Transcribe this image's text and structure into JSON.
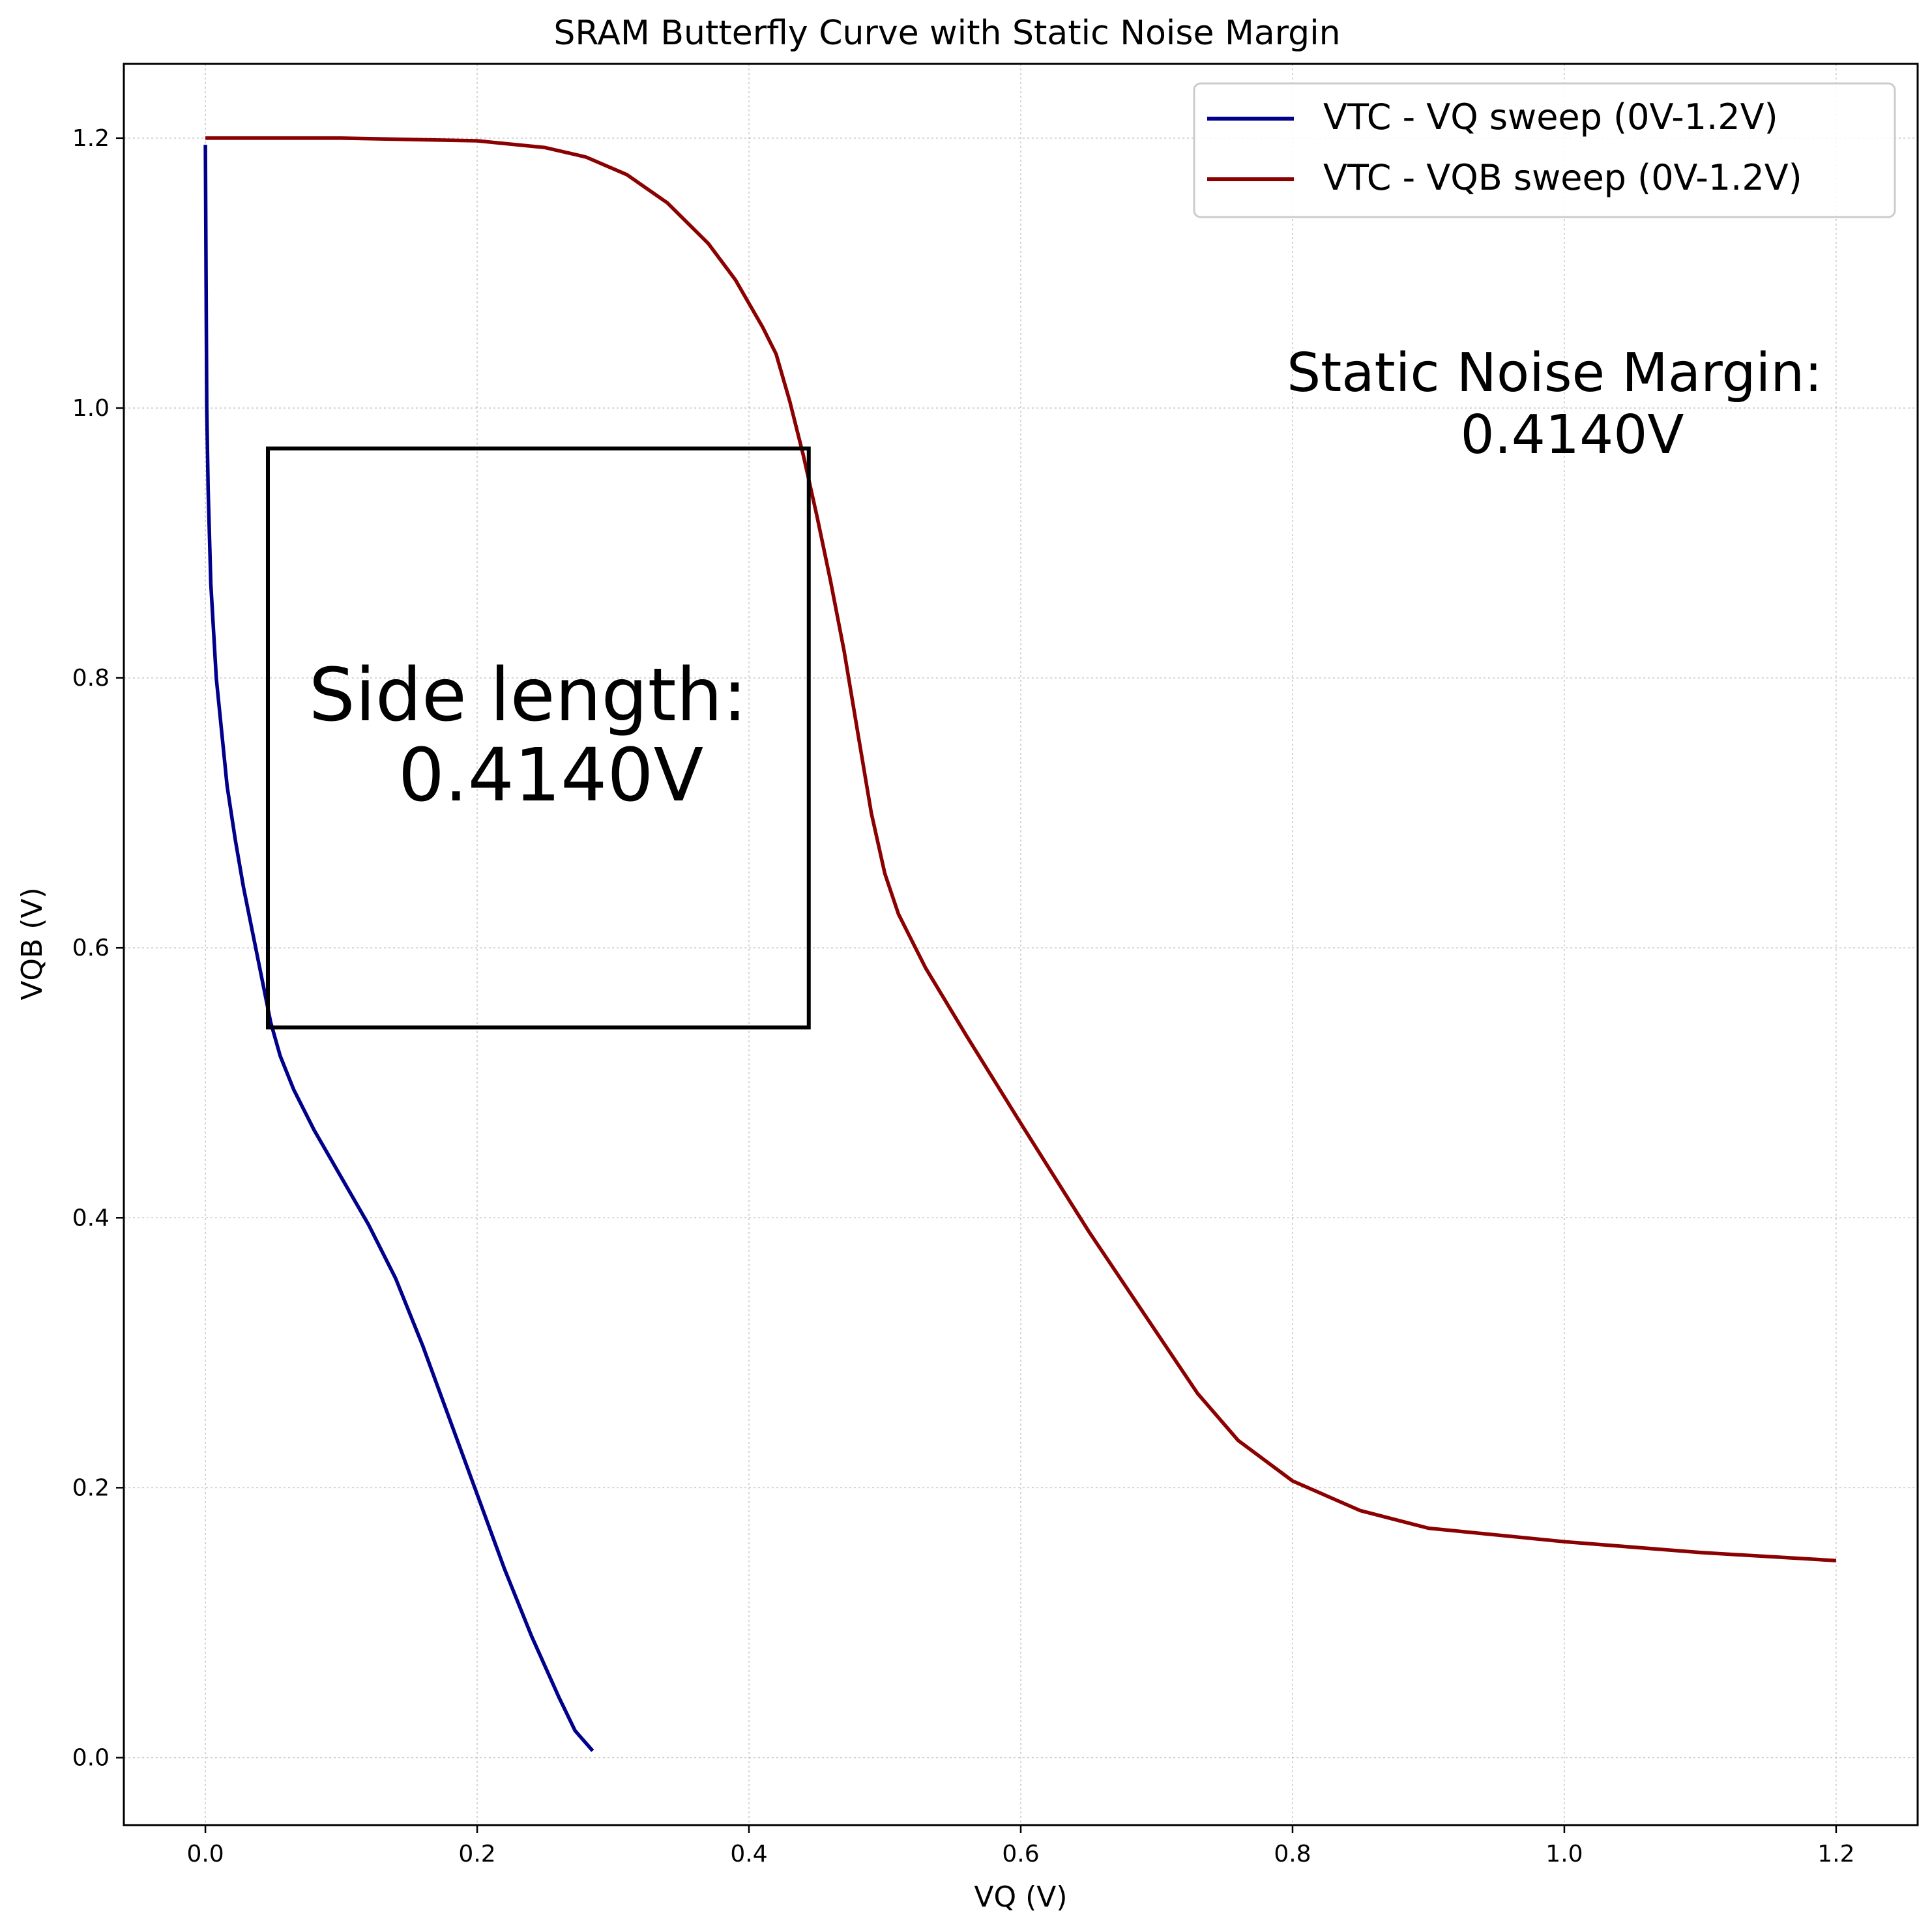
{
  "chart_data": {
    "type": "line",
    "title": "SRAM Butterfly Curve with Static Noise Margin",
    "xlabel": "VQ (V)",
    "ylabel": "VQB (V)",
    "xlim": [
      -0.06,
      1.26
    ],
    "ylim": [
      -0.05,
      1.255
    ],
    "xticks": [
      0.0,
      0.2,
      0.4,
      0.6,
      0.8,
      1.0,
      1.2
    ],
    "xtick_labels": [
      "0.0",
      "0.2",
      "0.4",
      "0.6",
      "0.8",
      "1.0",
      "1.2"
    ],
    "yticks": [
      0.0,
      0.2,
      0.4,
      0.6,
      0.8,
      1.0,
      1.2
    ],
    "ytick_labels": [
      "0.0",
      "0.2",
      "0.4",
      "0.6",
      "0.8",
      "1.0",
      "1.2"
    ],
    "grid": true,
    "legend_position": "top-right",
    "series": [
      {
        "name": "VTC - VQ sweep (0V-1.2V)",
        "color": "#00008B",
        "points": [
          [
            0.0,
            1.195
          ],
          [
            0.0005,
            1.1
          ],
          [
            0.001,
            1.0
          ],
          [
            0.002,
            0.94
          ],
          [
            0.004,
            0.87
          ],
          [
            0.008,
            0.8
          ],
          [
            0.012,
            0.76
          ],
          [
            0.016,
            0.72
          ],
          [
            0.022,
            0.68
          ],
          [
            0.028,
            0.645
          ],
          [
            0.035,
            0.61
          ],
          [
            0.042,
            0.575
          ],
          [
            0.048,
            0.545
          ],
          [
            0.055,
            0.52
          ],
          [
            0.065,
            0.495
          ],
          [
            0.08,
            0.465
          ],
          [
            0.1,
            0.43
          ],
          [
            0.12,
            0.395
          ],
          [
            0.14,
            0.355
          ],
          [
            0.16,
            0.305
          ],
          [
            0.18,
            0.25
          ],
          [
            0.2,
            0.195
          ],
          [
            0.22,
            0.14
          ],
          [
            0.24,
            0.09
          ],
          [
            0.26,
            0.045
          ],
          [
            0.272,
            0.02
          ],
          [
            0.285,
            0.005
          ]
        ]
      },
      {
        "name": "VTC - VQB sweep (0V-1.2V)",
        "color": "#8B0000",
        "points": [
          [
            0.0,
            1.2
          ],
          [
            0.1,
            1.2
          ],
          [
            0.2,
            1.198
          ],
          [
            0.25,
            1.193
          ],
          [
            0.28,
            1.186
          ],
          [
            0.31,
            1.173
          ],
          [
            0.34,
            1.152
          ],
          [
            0.37,
            1.122
          ],
          [
            0.39,
            1.095
          ],
          [
            0.41,
            1.06
          ],
          [
            0.42,
            1.04
          ],
          [
            0.43,
            1.005
          ],
          [
            0.44,
            0.965
          ],
          [
            0.45,
            0.92
          ],
          [
            0.46,
            0.872
          ],
          [
            0.47,
            0.82
          ],
          [
            0.48,
            0.76
          ],
          [
            0.49,
            0.7
          ],
          [
            0.5,
            0.655
          ],
          [
            0.51,
            0.625
          ],
          [
            0.53,
            0.585
          ],
          [
            0.56,
            0.535
          ],
          [
            0.6,
            0.47
          ],
          [
            0.65,
            0.39
          ],
          [
            0.7,
            0.315
          ],
          [
            0.73,
            0.27
          ],
          [
            0.76,
            0.235
          ],
          [
            0.8,
            0.205
          ],
          [
            0.85,
            0.183
          ],
          [
            0.9,
            0.17
          ],
          [
            1.0,
            0.16
          ],
          [
            1.1,
            0.152
          ],
          [
            1.2,
            0.146
          ]
        ]
      }
    ],
    "square": {
      "x0": 0.046,
      "y0": 0.541,
      "x1": 0.444,
      "y1": 0.97,
      "color": "#000000"
    },
    "annotations": {
      "side_length_line1": "Side length:",
      "side_length_line2": "0.4140V",
      "snm_line1": "Static Noise Margin:",
      "snm_line2": "0.4140V"
    }
  }
}
